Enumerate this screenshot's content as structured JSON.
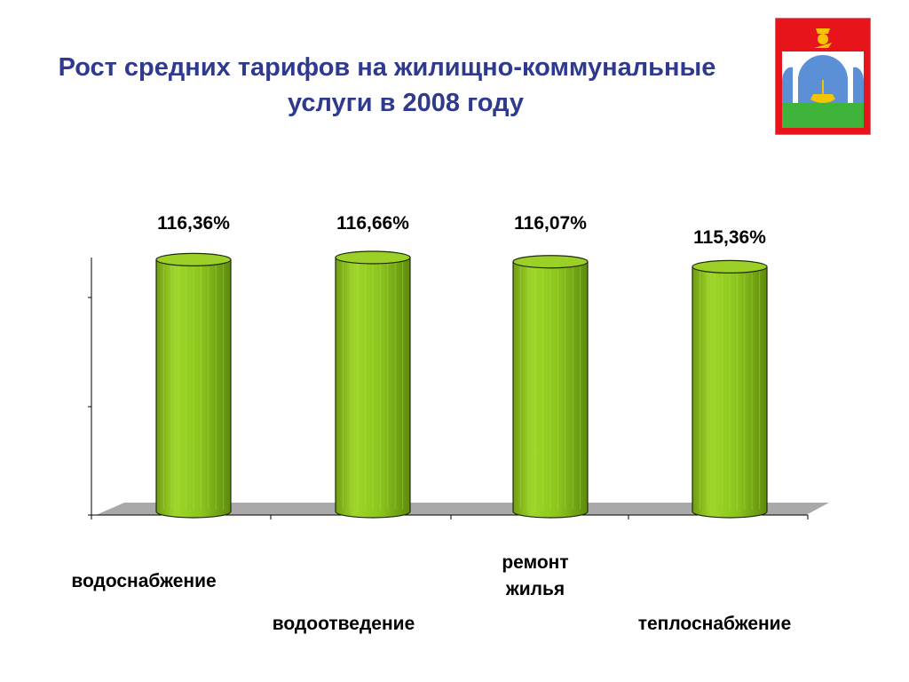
{
  "title": {
    "line1": "Рост средних тарифов на жилищно-коммунальные",
    "line2": "услуги в 2008 году"
  },
  "emblem": {
    "name": "coat-of-arms",
    "colors": [
      "#e8141c",
      "#ffffff",
      "#3fb33a",
      "#5b8fd6",
      "#f2c500"
    ]
  },
  "chart_data": {
    "type": "bar",
    "style": "3d-cylinder",
    "categories": [
      "водоснабжение",
      "водоотведение",
      "ремонт жилья",
      "теплоснабжение"
    ],
    "category_label_lines": [
      [
        "водоснабжение"
      ],
      [
        "водоотведение"
      ],
      [
        "ремонт",
        "жилья"
      ],
      [
        "теплоснабжение"
      ]
    ],
    "values": [
      116.36,
      116.66,
      116.07,
      115.36
    ],
    "data_labels": [
      "116,36%",
      "116,66%",
      "116,07%",
      "115,36%"
    ],
    "unit": "%",
    "bar_color": "#8bc51c",
    "floor_color": "#a9a9a9",
    "grid": false
  }
}
